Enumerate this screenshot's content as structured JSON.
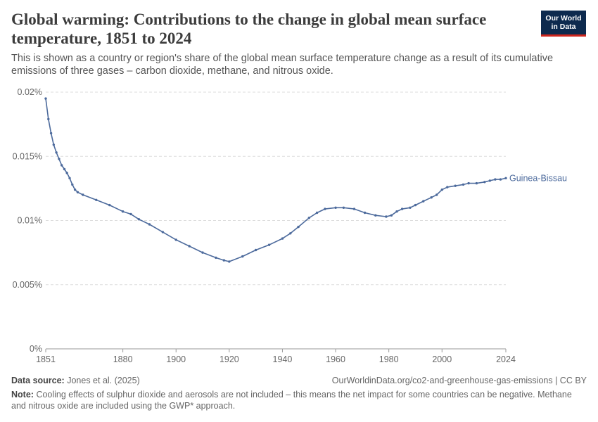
{
  "header": {
    "title": "Global warming: Contributions to the change in global mean surface temperature, 1851 to 2024",
    "subtitle": "This is shown as a country or region's share of the global mean surface temperature change as a result of its cumulative emissions of three gases – carbon dioxide, methane, and nitrous oxide.",
    "logo_line1": "Our World",
    "logo_line2": "in Data"
  },
  "footer": {
    "source_label": "Data source:",
    "source_text": "Jones et al. (2025)",
    "url_text": "OurWorldinData.org/co2-and-greenhouse-gas-emissions | CC BY",
    "note_label": "Note:",
    "note_text": "Cooling effects of sulphur dioxide and aerosols are not included – this means the net impact for some countries can be negative. Methane and nitrous oxide are included using the GWP* approach."
  },
  "colors": {
    "series": "#4c6a9c",
    "grid": "#dddddd",
    "axis": "#999999"
  },
  "chart_data": {
    "type": "line",
    "title": "",
    "xlabel": "",
    "ylabel": "",
    "xlim": [
      1851,
      2024
    ],
    "ylim": [
      0,
      0.02
    ],
    "x_ticks": [
      1851,
      1880,
      1900,
      1920,
      1940,
      1960,
      1980,
      2000,
      2024
    ],
    "x_tick_labels": [
      "1851",
      "1880",
      "1900",
      "1920",
      "1940",
      "1960",
      "1980",
      "2000",
      "2024"
    ],
    "y_ticks": [
      0,
      0.005,
      0.01,
      0.015,
      0.02
    ],
    "y_tick_labels": [
      "0%",
      "0.005%",
      "0.01%",
      "0.015%",
      "0.02%"
    ],
    "grid": "horizontal-dashed",
    "series": [
      {
        "name": "Guinea-Bissau",
        "points": [
          [
            1851,
            0.0195
          ],
          [
            1852,
            0.0179
          ],
          [
            1853,
            0.0168
          ],
          [
            1854,
            0.0159
          ],
          [
            1855,
            0.0153
          ],
          [
            1856,
            0.0148
          ],
          [
            1857,
            0.0143
          ],
          [
            1858,
            0.014
          ],
          [
            1859,
            0.0137
          ],
          [
            1860,
            0.0133
          ],
          [
            1861,
            0.0128
          ],
          [
            1862,
            0.0124
          ],
          [
            1863,
            0.0122
          ],
          [
            1865,
            0.012
          ],
          [
            1870,
            0.0116
          ],
          [
            1875,
            0.0112
          ],
          [
            1880,
            0.0107
          ],
          [
            1883,
            0.0105
          ],
          [
            1886,
            0.0101
          ],
          [
            1890,
            0.0097
          ],
          [
            1895,
            0.0091
          ],
          [
            1900,
            0.0085
          ],
          [
            1905,
            0.008
          ],
          [
            1910,
            0.0075
          ],
          [
            1915,
            0.0071
          ],
          [
            1918,
            0.0069
          ],
          [
            1920,
            0.0068
          ],
          [
            1925,
            0.0072
          ],
          [
            1930,
            0.0077
          ],
          [
            1935,
            0.0081
          ],
          [
            1940,
            0.0086
          ],
          [
            1943,
            0.009
          ],
          [
            1946,
            0.0095
          ],
          [
            1950,
            0.0102
          ],
          [
            1953,
            0.0106
          ],
          [
            1956,
            0.0109
          ],
          [
            1960,
            0.011
          ],
          [
            1963,
            0.011
          ],
          [
            1967,
            0.0109
          ],
          [
            1971,
            0.0106
          ],
          [
            1975,
            0.0104
          ],
          [
            1979,
            0.0103
          ],
          [
            1981,
            0.0104
          ],
          [
            1983,
            0.0107
          ],
          [
            1985,
            0.0109
          ],
          [
            1988,
            0.011
          ],
          [
            1990,
            0.0112
          ],
          [
            1993,
            0.0115
          ],
          [
            1996,
            0.0118
          ],
          [
            1998,
            0.012
          ],
          [
            2000,
            0.0124
          ],
          [
            2002,
            0.0126
          ],
          [
            2005,
            0.0127
          ],
          [
            2008,
            0.0128
          ],
          [
            2010,
            0.0129
          ],
          [
            2013,
            0.0129
          ],
          [
            2016,
            0.013
          ],
          [
            2018,
            0.0131
          ],
          [
            2020,
            0.0132
          ],
          [
            2022,
            0.0132
          ],
          [
            2024,
            0.0133
          ]
        ]
      }
    ]
  }
}
